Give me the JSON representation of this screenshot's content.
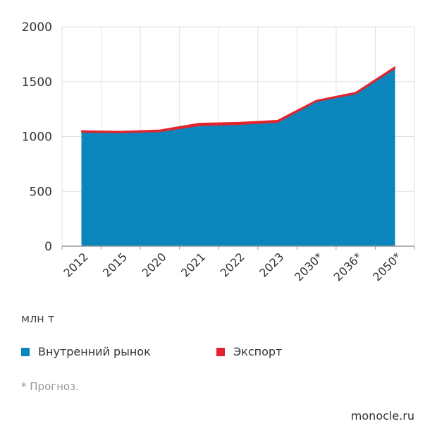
{
  "chart_data": {
    "type": "area",
    "stacked": true,
    "categories": [
      "2012",
      "2015",
      "2020",
      "2021",
      "2022",
      "2023",
      "2030*",
      "2036*",
      "2050*"
    ],
    "series": [
      {
        "name": "Внутренний рынок",
        "color": "#0b86bd",
        "values": [
          1040,
          1035,
          1045,
          1100,
          1110,
          1130,
          1320,
          1390,
          1620
        ]
      },
      {
        "name": "Экспорт",
        "color": "#e2242c",
        "values": [
          12,
          12,
          14,
          20,
          18,
          16,
          10,
          12,
          14
        ]
      }
    ],
    "yticks": [
      "0",
      "500",
      "1000",
      "1500",
      "2000"
    ],
    "ylim": [
      0,
      2000
    ],
    "unit_label": "млн т",
    "grid": true,
    "legend_position": "bottom"
  },
  "note": "* Прогноз.",
  "source": "monocle.ru"
}
